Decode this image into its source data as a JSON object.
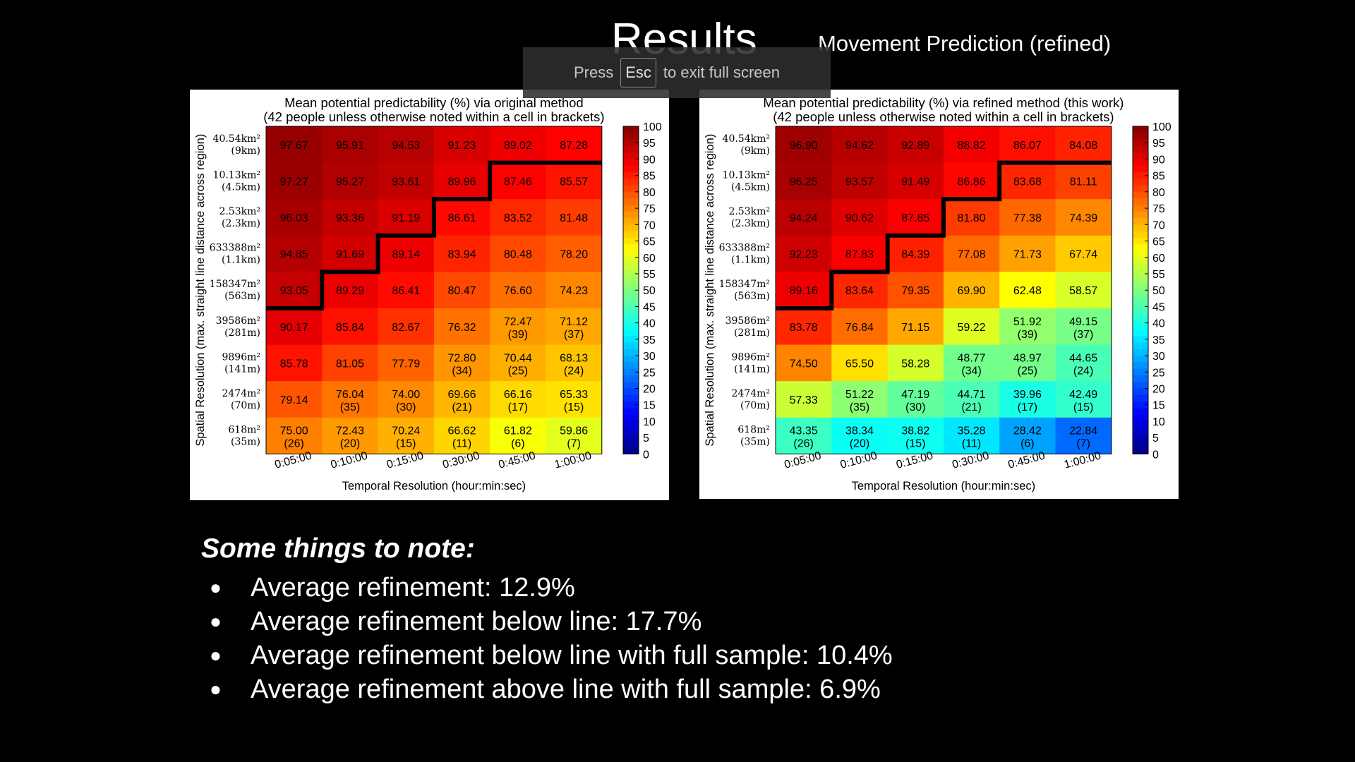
{
  "slide": {
    "title": "Results",
    "subtitle": "Movement Prediction (refined)"
  },
  "fullscreen_notice": {
    "press": "Press",
    "key": "Esc",
    "rest": "to exit full screen"
  },
  "chart_data": [
    {
      "type": "heatmap",
      "title_line1": "Mean potential predictability (%) via original method",
      "title_line2": "(42 people unless otherwise noted within a cell in brackets)",
      "xlabel": "Temporal Resolution (hour:min:sec)",
      "ylabel": "Spatial Resolution (max. straight line distance across region)",
      "x_ticks": [
        "0:05:00",
        "0:10:00",
        "0:15:00",
        "0:30:00",
        "0:45:00",
        "1:00:00"
      ],
      "y_ticks": [
        {
          "area": "40.54km²",
          "dist": "(9km)"
        },
        {
          "area": "10.13km²",
          "dist": "(4.5km)"
        },
        {
          "area": "2.53km²",
          "dist": "(2.3km)"
        },
        {
          "area": "633388m²",
          "dist": "(1.1km)"
        },
        {
          "area": "158347m²",
          "dist": "(563m)"
        },
        {
          "area": "39586m²",
          "dist": "(281m)"
        },
        {
          "area": "9896m²",
          "dist": "(141m)"
        },
        {
          "area": "2474m²",
          "dist": "(70m)"
        },
        {
          "area": "618m²",
          "dist": "(35m)"
        }
      ],
      "colorbar": {
        "min": 0,
        "max": 100,
        "ticks": [
          0,
          5,
          10,
          15,
          20,
          25,
          30,
          35,
          40,
          45,
          50,
          55,
          60,
          65,
          70,
          75,
          80,
          85,
          90,
          95,
          100
        ]
      },
      "values": [
        [
          97.67,
          95.91,
          94.53,
          91.23,
          89.02,
          87.28
        ],
        [
          97.27,
          95.27,
          93.61,
          89.96,
          87.46,
          85.57
        ],
        [
          96.03,
          93.36,
          91.19,
          86.61,
          83.52,
          81.48
        ],
        [
          94.85,
          91.69,
          89.14,
          83.94,
          80.48,
          78.2
        ],
        [
          93.05,
          89.29,
          86.41,
          80.47,
          76.6,
          74.23
        ],
        [
          90.17,
          85.84,
          82.67,
          76.32,
          72.47,
          71.12
        ],
        [
          85.78,
          81.05,
          77.79,
          72.8,
          70.44,
          68.13
        ],
        [
          79.14,
          76.04,
          74.0,
          69.66,
          66.16,
          65.33
        ],
        [
          75.0,
          72.43,
          70.24,
          66.62,
          61.82,
          59.86
        ]
      ],
      "counts": [
        [
          null,
          null,
          null,
          null,
          null,
          null
        ],
        [
          null,
          null,
          null,
          null,
          null,
          null
        ],
        [
          null,
          null,
          null,
          null,
          null,
          null
        ],
        [
          null,
          null,
          null,
          null,
          null,
          null
        ],
        [
          null,
          null,
          null,
          null,
          null,
          null
        ],
        [
          null,
          null,
          null,
          null,
          "(39)",
          "(37)"
        ],
        [
          null,
          null,
          null,
          "(34)",
          "(25)",
          "(24)"
        ],
        [
          null,
          "(35)",
          "(30)",
          "(21)",
          "(17)",
          "(15)"
        ],
        [
          "(26)",
          "(20)",
          "(15)",
          "(11)",
          "(6)",
          "(7)"
        ]
      ]
    },
    {
      "type": "heatmap",
      "title_line1": "Mean potential predictability (%) via refined method (this work)",
      "title_line2": "(42 people unless otherwise noted within a cell in brackets)",
      "xlabel": "Temporal Resolution (hour:min:sec)",
      "ylabel": "Spatial Resolution (max. straight line distance across region)",
      "x_ticks": [
        "0:05:00",
        "0:10:00",
        "0:15:00",
        "0:30:00",
        "0:45:00",
        "1:00:00"
      ],
      "y_ticks": [
        {
          "area": "40.54km²",
          "dist": "(9km)"
        },
        {
          "area": "10.13km²",
          "dist": "(4.5km)"
        },
        {
          "area": "2.53km²",
          "dist": "(2.3km)"
        },
        {
          "area": "633388m²",
          "dist": "(1.1km)"
        },
        {
          "area": "158347m²",
          "dist": "(563m)"
        },
        {
          "area": "39586m²",
          "dist": "(281m)"
        },
        {
          "area": "9896m²",
          "dist": "(141m)"
        },
        {
          "area": "2474m²",
          "dist": "(70m)"
        },
        {
          "area": "618m²",
          "dist": "(35m)"
        }
      ],
      "colorbar": {
        "min": 0,
        "max": 100,
        "ticks": [
          0,
          5,
          10,
          15,
          20,
          25,
          30,
          35,
          40,
          45,
          50,
          55,
          60,
          65,
          70,
          75,
          80,
          85,
          90,
          95,
          100
        ]
      },
      "values": [
        [
          96.9,
          94.62,
          92.89,
          88.82,
          86.07,
          84.08
        ],
        [
          96.25,
          93.57,
          91.49,
          86.86,
          83.68,
          81.11
        ],
        [
          94.24,
          90.62,
          87.85,
          81.8,
          77.38,
          74.39
        ],
        [
          92.23,
          87.83,
          84.39,
          77.08,
          71.73,
          67.74
        ],
        [
          89.16,
          83.64,
          79.35,
          69.9,
          62.48,
          58.57
        ],
        [
          83.78,
          76.84,
          71.15,
          59.22,
          51.92,
          49.15
        ],
        [
          74.5,
          65.5,
          58.28,
          48.77,
          48.97,
          44.65
        ],
        [
          57.33,
          51.22,
          47.19,
          44.71,
          39.96,
          42.49
        ],
        [
          43.35,
          38.34,
          38.82,
          35.28,
          28.42,
          22.84
        ]
      ],
      "counts": [
        [
          null,
          null,
          null,
          null,
          null,
          null
        ],
        [
          null,
          null,
          null,
          null,
          null,
          null
        ],
        [
          null,
          null,
          null,
          null,
          null,
          null
        ],
        [
          null,
          null,
          null,
          null,
          null,
          null
        ],
        [
          null,
          null,
          null,
          null,
          null,
          null
        ],
        [
          null,
          null,
          null,
          null,
          "(39)",
          "(37)"
        ],
        [
          null,
          null,
          null,
          "(34)",
          "(25)",
          "(24)"
        ],
        [
          null,
          "(35)",
          "(30)",
          "(21)",
          "(17)",
          "(15)"
        ],
        [
          "(26)",
          "(20)",
          "(15)",
          "(11)",
          "(6)",
          "(7)"
        ]
      ]
    }
  ],
  "notes": {
    "heading": "Some things to note:",
    "items": [
      "Average refinement: 12.9%",
      "Average refinement below line: 17.7%",
      "Average refinement below line with full sample: 10.4%",
      "Average refinement above line with full sample: 6.9%"
    ]
  }
}
